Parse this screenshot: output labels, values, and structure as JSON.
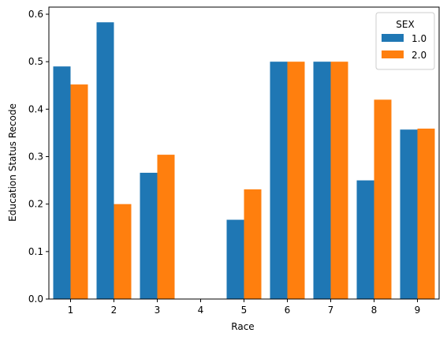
{
  "chart_data": {
    "type": "bar",
    "xlabel": "Race",
    "ylabel": "Education Status Recode",
    "categories": [
      "1",
      "2",
      "3",
      "4",
      "5",
      "6",
      "7",
      "8",
      "9"
    ],
    "series": [
      {
        "name": "1.0",
        "color": "#1f77b4",
        "values": [
          0.49,
          0.583,
          0.266,
          0.0,
          0.167,
          0.5,
          0.5,
          0.25,
          0.357
        ]
      },
      {
        "name": "2.0",
        "color": "#ff7f0e",
        "values": [
          0.452,
          0.2,
          0.304,
          0.0,
          0.231,
          0.5,
          0.5,
          0.42,
          0.359
        ]
      }
    ],
    "ylim": [
      0,
      0.615
    ],
    "yticks": [
      "0.0",
      "0.1",
      "0.2",
      "0.3",
      "0.4",
      "0.5",
      "0.6"
    ],
    "grid": false,
    "legend": {
      "title": "SEX",
      "position": "top-right"
    }
  }
}
